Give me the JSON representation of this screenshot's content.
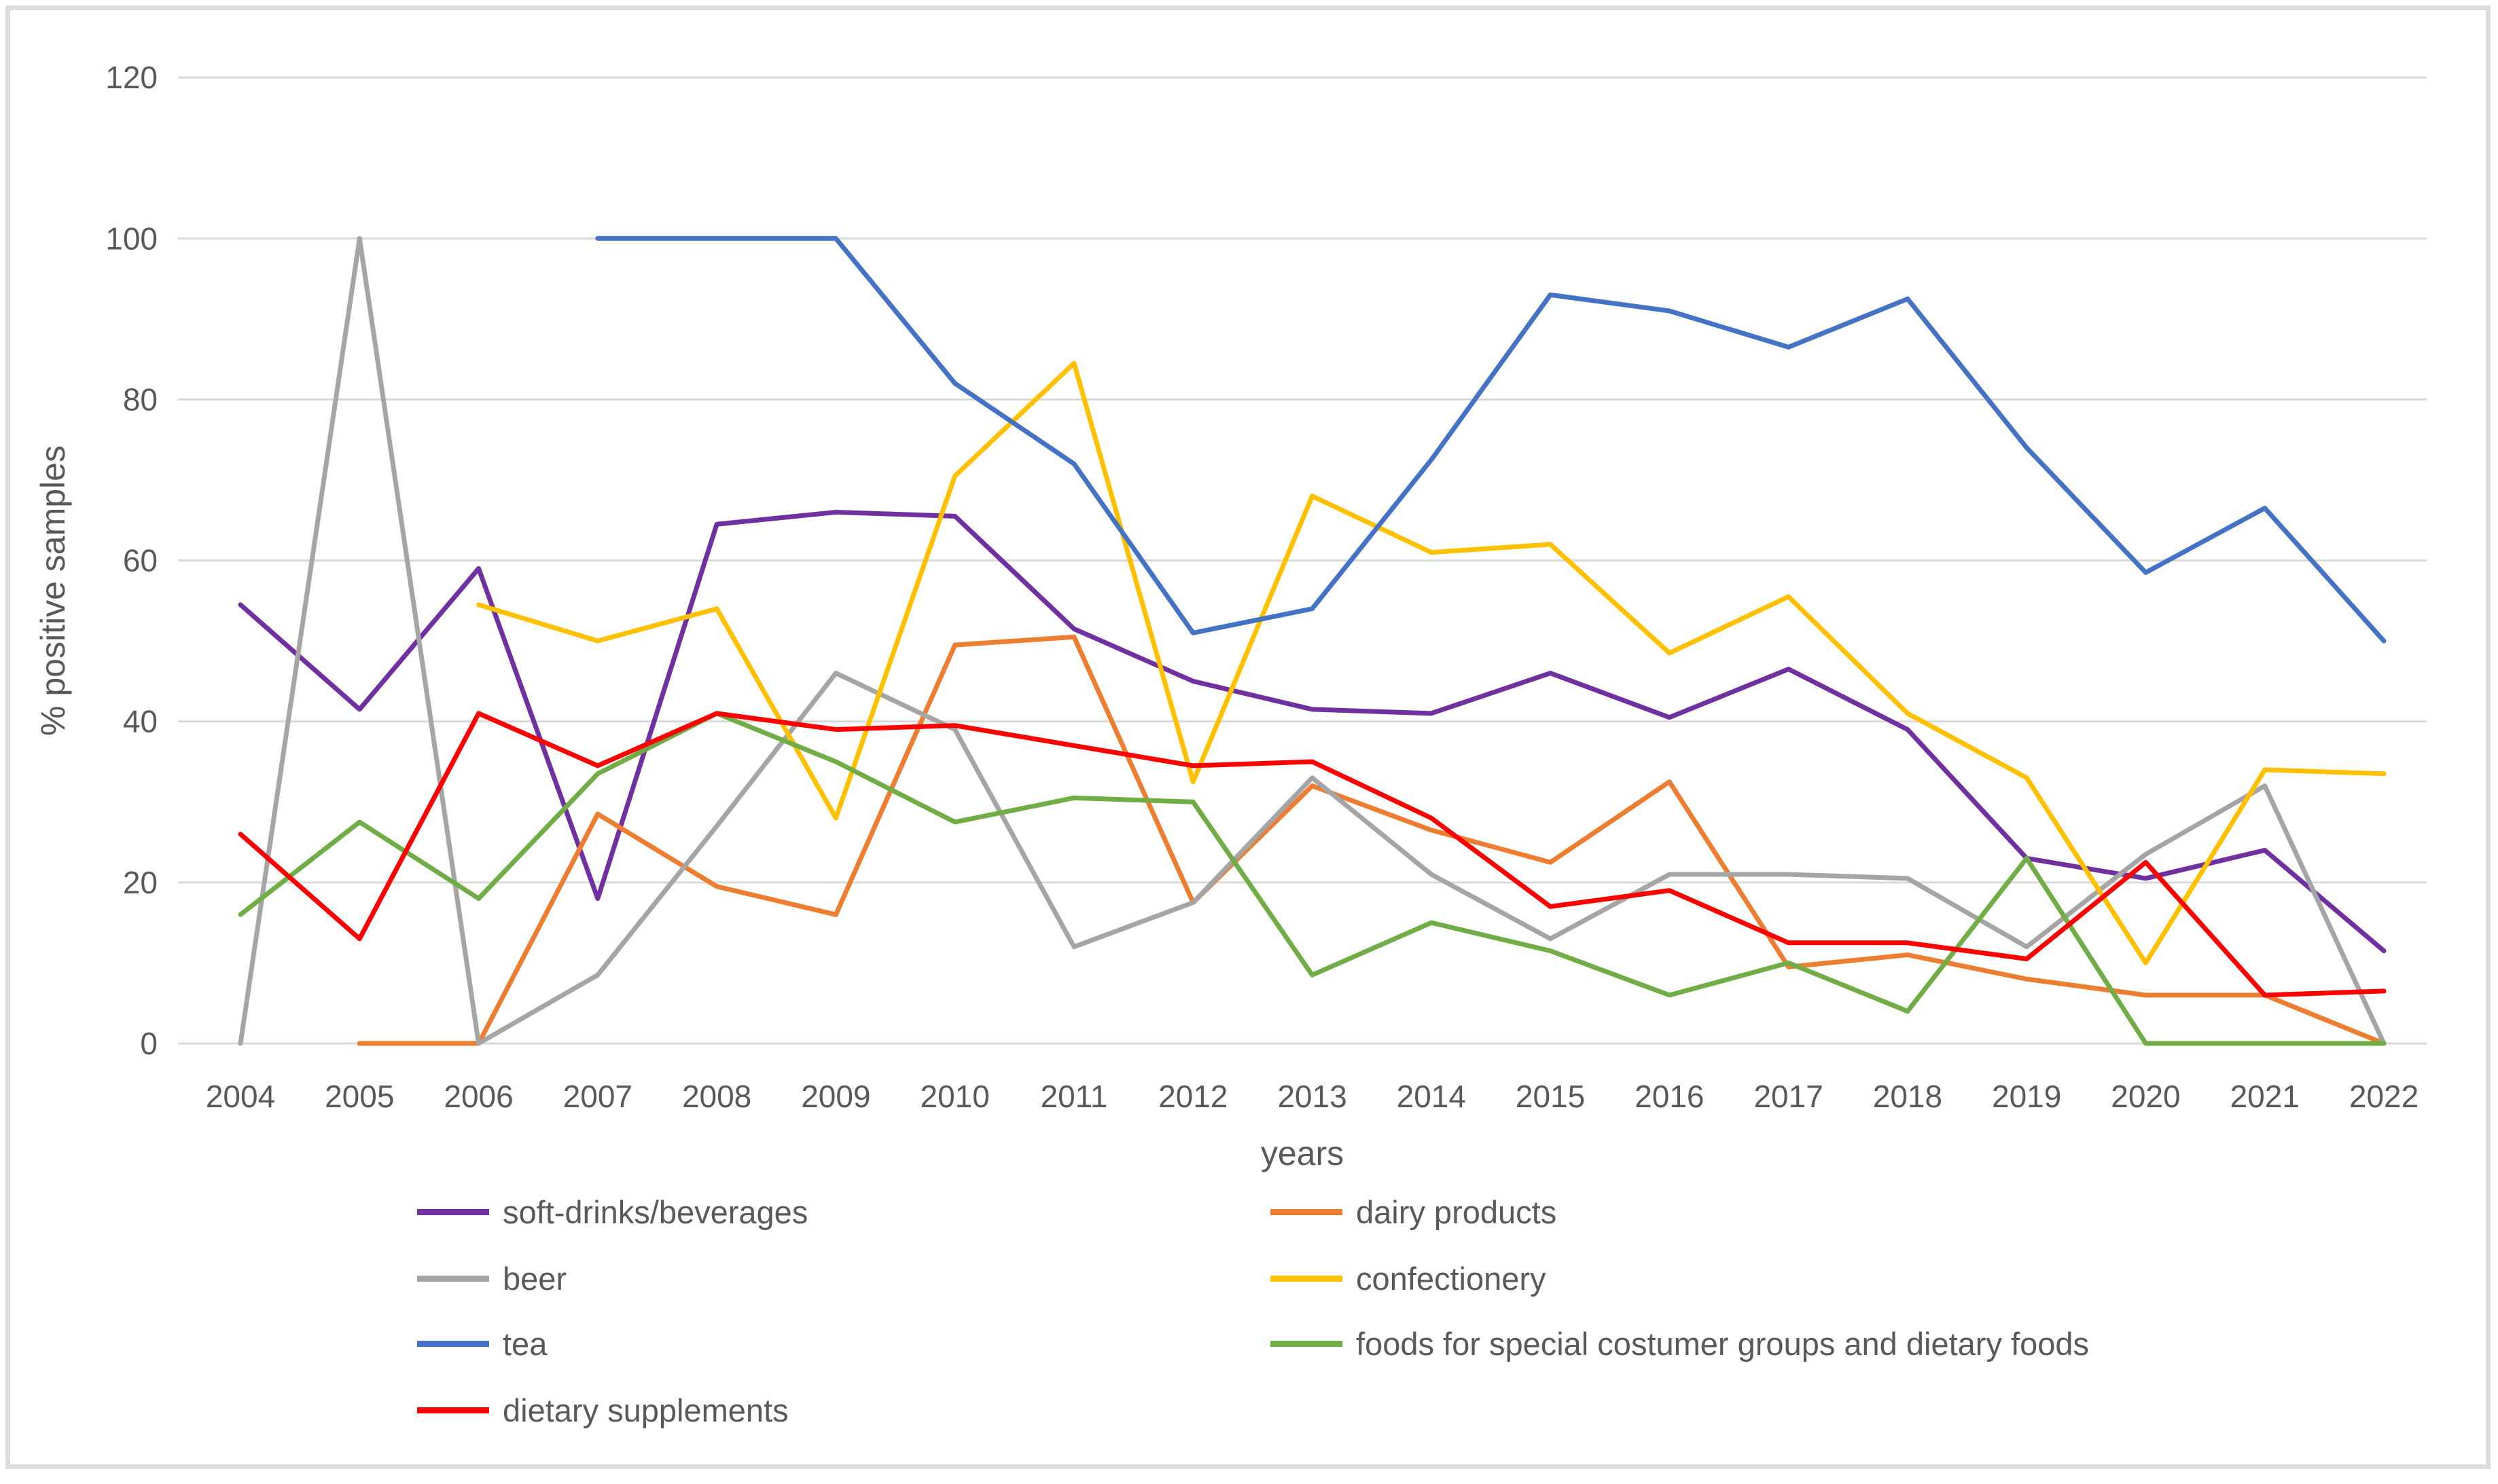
{
  "chart_data": {
    "type": "line",
    "title": "",
    "xlabel": "years",
    "ylabel": "% positive samples",
    "ylim": [
      0,
      120
    ],
    "ytick_step": 20,
    "yticks": [
      0,
      20,
      40,
      60,
      80,
      100,
      120
    ],
    "grid": "horizontal",
    "legend_position": "bottom-two-columns",
    "categories": [
      2004,
      2005,
      2006,
      2007,
      2008,
      2009,
      2010,
      2011,
      2012,
      2013,
      2014,
      2015,
      2016,
      2017,
      2018,
      2019,
      2020,
      2021,
      2022
    ],
    "series": [
      {
        "name": "soft-drinks/beverages",
        "color": "#7030a0",
        "values": [
          54.5,
          41.5,
          59,
          18,
          64.5,
          66,
          65.5,
          51.5,
          45,
          41.5,
          41,
          46,
          40.5,
          46.5,
          39,
          23,
          20.5,
          24,
          11.5
        ]
      },
      {
        "name": "dairy products",
        "color": "#ed7d31",
        "values": [
          null,
          0,
          0,
          28.5,
          19.5,
          16,
          49.5,
          50.5,
          17.5,
          32,
          26.5,
          22.5,
          32.5,
          9.5,
          11,
          8,
          6,
          6,
          0
        ]
      },
      {
        "name": "beer",
        "color": "#a5a5a5",
        "values": [
          0,
          100,
          0,
          8.5,
          27,
          46,
          39,
          12,
          17.5,
          33,
          21,
          13,
          21,
          21,
          20.5,
          12,
          23.5,
          32,
          0
        ]
      },
      {
        "name": "confectionery",
        "color": "#ffc000",
        "values": [
          null,
          null,
          54.5,
          50,
          54,
          28,
          70.5,
          84.5,
          32.5,
          68,
          61,
          62,
          48.5,
          55.5,
          41,
          33,
          10,
          34,
          33.5
        ]
      },
      {
        "name": "tea",
        "color": "#4472c4",
        "values": [
          null,
          null,
          null,
          100,
          100,
          100,
          82,
          72,
          51,
          54,
          72.5,
          93,
          91,
          86.5,
          92.5,
          74,
          58.5,
          66.5,
          50
        ]
      },
      {
        "name": "foods for special costumer groups and dietary foods",
        "color": "#70ad47",
        "values": [
          16,
          27.5,
          18,
          33.5,
          41,
          35,
          27.5,
          30.5,
          30,
          8.5,
          15,
          11.5,
          6,
          10,
          4,
          23,
          0,
          0,
          0
        ]
      },
      {
        "name": "dietary supplements",
        "color": "#ff0000",
        "values": [
          26,
          13,
          41,
          34.5,
          41,
          39,
          39.5,
          37,
          34.5,
          35,
          28,
          17,
          19,
          12.5,
          12.5,
          10.5,
          22.5,
          6,
          6.5
        ]
      }
    ]
  },
  "axes": {
    "y_title": "% positive samples",
    "x_title": "years",
    "y_tick_labels": [
      "0",
      "20",
      "40",
      "60",
      "80",
      "100",
      "120"
    ],
    "x_tick_labels": [
      "2004",
      "2005",
      "2006",
      "2007",
      "2008",
      "2009",
      "2010",
      "2011",
      "2012",
      "2013",
      "2014",
      "2015",
      "2016",
      "2017",
      "2018",
      "2019",
      "2020",
      "2021",
      "2022"
    ]
  },
  "legend": {
    "left_column": [
      "soft-drinks/beverages",
      "beer",
      "tea",
      "dietary supplements"
    ],
    "right_column": [
      "dairy products",
      "confectionery",
      "foods for special costumer groups and dietary foods"
    ]
  },
  "colors": {
    "gridline": "#d9d9d9",
    "text": "#595959",
    "frame_border": "#dcdcdc",
    "background": "#ffffff"
  }
}
